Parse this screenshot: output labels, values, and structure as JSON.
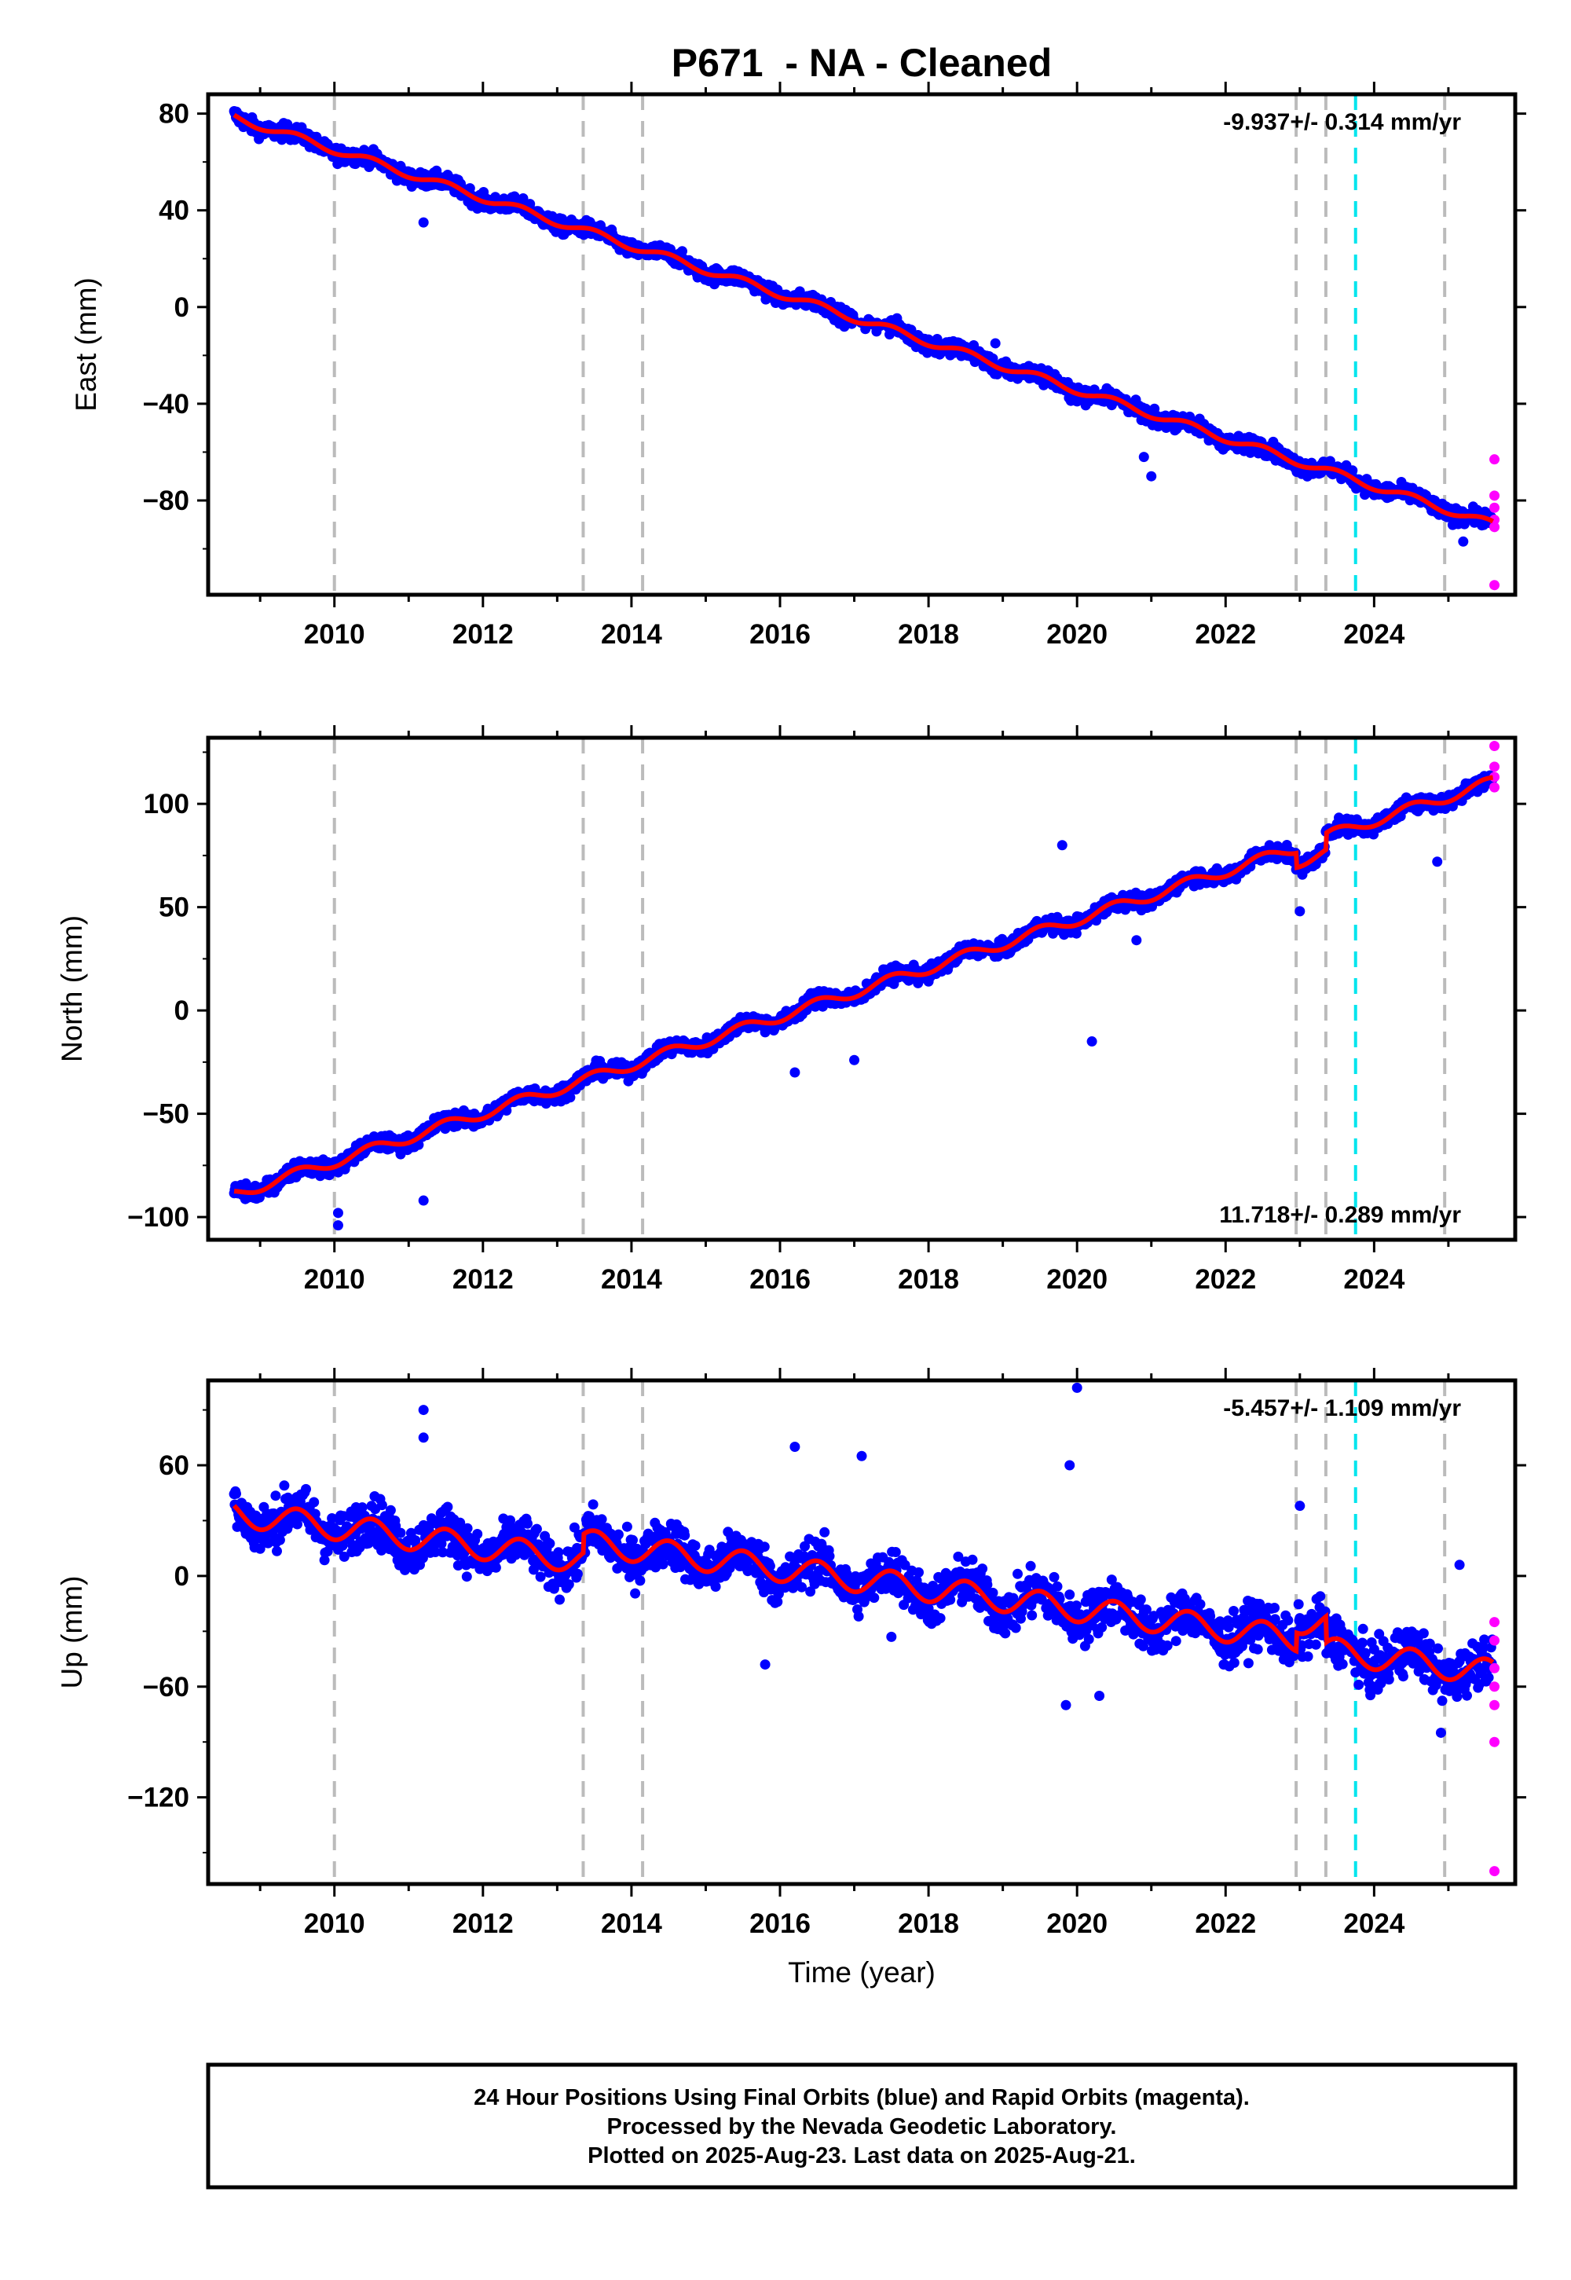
{
  "title": "P671  - NA - Cleaned",
  "footer": {
    "lines": [
      "24 Hour Positions Using Final Orbits (blue) and Rapid Orbits (magenta).",
      "Processed by the Nevada Geodetic Laboratory.",
      "Plotted on 2025-Aug-23. Last data on 2025-Aug-21."
    ]
  },
  "colors": {
    "final_orbits": "#0000ff",
    "rapid_orbits": "#ff00ff",
    "model_fit": "#ff0000",
    "equipment_change": "#bbbbbb",
    "earthquake": "#00e5ee"
  },
  "chart_data": [
    {
      "type": "scatter",
      "name": "east",
      "ylabel": "East (mm)",
      "xlabel": "",
      "xlim": [
        2008.3,
        2025.9
      ],
      "ylim": [
        -119,
        88
      ],
      "yticks": [
        80,
        40,
        0,
        -40,
        -80
      ],
      "xticks": [
        2010,
        2012,
        2014,
        2016,
        2018,
        2020,
        2022,
        2024
      ],
      "rate_label": "-9.937+/- 0.314 mm/yr",
      "rate_position": "top-right",
      "model": {
        "start": 2008.65,
        "end": 2025.6,
        "y0": 78.5,
        "rate": -9.937,
        "annual_amp": 1.6,
        "steps": []
      },
      "scatter_spread": 2.2,
      "equipment_changes": [
        2010.0,
        2013.35,
        2014.15,
        2022.95,
        2023.35,
        2024.95
      ],
      "earthquake": 2023.75,
      "rapid_points": [
        [
          2025.62,
          -63
        ],
        [
          2025.62,
          -78
        ],
        [
          2025.62,
          -83
        ],
        [
          2025.62,
          -88
        ],
        [
          2025.62,
          -91
        ],
        [
          2025.62,
          -115
        ]
      ],
      "outliers": [
        [
          2011.2,
          35
        ],
        [
          2020.9,
          -62
        ],
        [
          2021.0,
          -70
        ],
        [
          2025.2,
          -97
        ],
        [
          2018.9,
          -15
        ]
      ]
    },
    {
      "type": "scatter",
      "name": "north",
      "ylabel": "North (mm)",
      "xlabel": "",
      "xlim": [
        2008.3,
        2025.9
      ],
      "ylim": [
        -111,
        132
      ],
      "yticks": [
        100,
        50,
        0,
        -50,
        -100
      ],
      "xticks": [
        2010,
        2012,
        2014,
        2016,
        2018,
        2020,
        2022,
        2024
      ],
      "rate_label": "11.718+/- 0.289 mm/yr",
      "rate_position": "bottom-right",
      "model": {
        "start": 2008.65,
        "end": 2025.6,
        "y0": -89,
        "rate": 11.718,
        "annual_amp": 2.6,
        "steps": [
          [
            2022.95,
            -7
          ],
          [
            2023.35,
            8
          ]
        ]
      },
      "scatter_spread": 2.6,
      "equipment_changes": [
        2010.0,
        2013.35,
        2014.15,
        2022.95,
        2023.35,
        2024.95
      ],
      "earthquake": 2023.75,
      "rapid_points": [
        [
          2025.62,
          128
        ],
        [
          2025.62,
          118
        ],
        [
          2025.62,
          113
        ],
        [
          2025.62,
          108
        ]
      ],
      "outliers": [
        [
          2010.05,
          -98
        ],
        [
          2010.05,
          -104
        ],
        [
          2011.2,
          -92
        ],
        [
          2016.2,
          -30
        ],
        [
          2017.0,
          -24
        ],
        [
          2019.8,
          80
        ],
        [
          2020.2,
          -15
        ],
        [
          2023.0,
          48
        ],
        [
          2024.85,
          72
        ],
        [
          2020.8,
          34
        ]
      ]
    },
    {
      "type": "scatter",
      "name": "up",
      "ylabel": "Up (mm)",
      "xlabel": "Time (year)",
      "xlim": [
        2008.3,
        2025.9
      ],
      "ylim": [
        -167,
        106
      ],
      "yticks": [
        60,
        0,
        -60,
        -120
      ],
      "xticks": [
        2010,
        2012,
        2014,
        2016,
        2018,
        2020,
        2022,
        2024
      ],
      "rate_label": "-5.457+/- 1.109 mm/yr",
      "rate_position": "top-right",
      "model": {
        "start": 2008.65,
        "end": 2025.6,
        "y0": 34,
        "rate": -5.457,
        "annual_amp": 7,
        "steps": [
          [
            2013.35,
            10
          ],
          [
            2022.95,
            10
          ],
          [
            2023.35,
            -14
          ]
        ]
      },
      "scatter_spread": 9,
      "equipment_changes": [
        2010.0,
        2013.35,
        2014.15,
        2022.95,
        2023.35,
        2024.95
      ],
      "earthquake": 2023.75,
      "rapid_points": [
        [
          2025.62,
          -25
        ],
        [
          2025.62,
          -35
        ],
        [
          2025.62,
          -50
        ],
        [
          2025.62,
          -60
        ],
        [
          2025.62,
          -70
        ],
        [
          2025.62,
          -90
        ],
        [
          2025.62,
          -160
        ]
      ],
      "outliers": [
        [
          2011.2,
          90
        ],
        [
          2011.2,
          75
        ],
        [
          2016.2,
          70
        ],
        [
          2017.1,
          65
        ],
        [
          2019.9,
          60
        ],
        [
          2020.0,
          102
        ],
        [
          2019.85,
          -70
        ],
        [
          2020.3,
          -65
        ],
        [
          2023.0,
          38
        ],
        [
          2025.15,
          6
        ],
        [
          2024.9,
          -85
        ],
        [
          2015.8,
          -48
        ],
        [
          2017.5,
          -33
        ]
      ]
    }
  ]
}
